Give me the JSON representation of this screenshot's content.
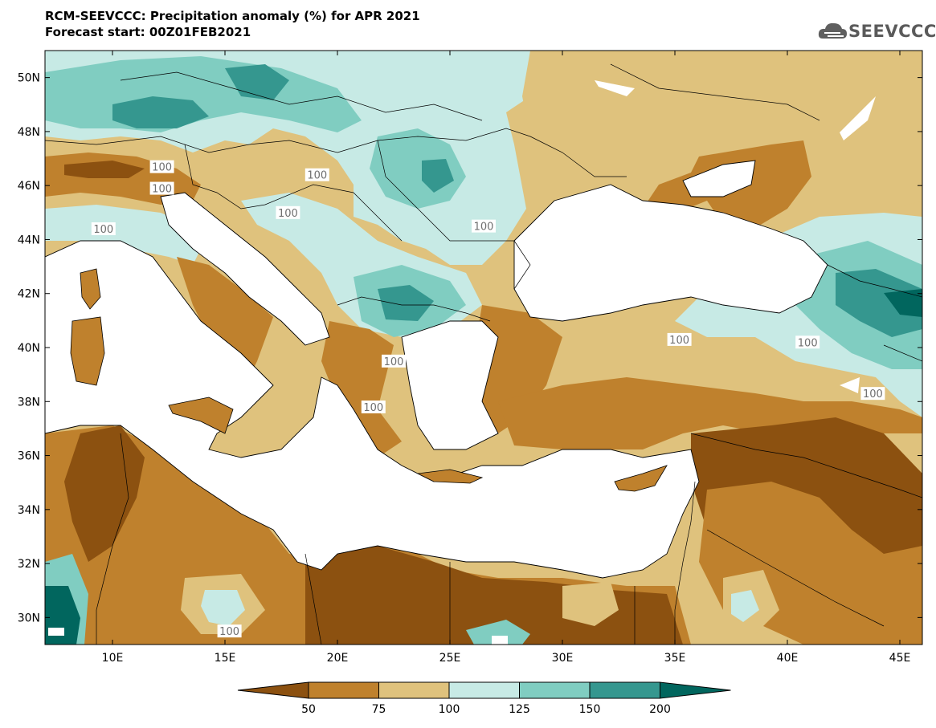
{
  "header": {
    "title": "RCM-SEEVCCC: Precipitation anomaly (%) for APR 2021",
    "subtitle": "Forecast start: 00Z01FEB2021"
  },
  "logo": {
    "text": "SEEVCCC",
    "icon": "cloud-icon"
  },
  "map": {
    "lon_range": [
      7,
      46
    ],
    "lat_range": [
      29,
      51
    ],
    "lon_ticks": [
      "10E",
      "15E",
      "20E",
      "25E",
      "30E",
      "35E",
      "40E",
      "45E"
    ],
    "lat_ticks": [
      "30N",
      "32N",
      "34N",
      "36N",
      "38N",
      "40N",
      "42N",
      "44N",
      "46N",
      "48N",
      "50N"
    ],
    "contour_labels": [
      {
        "text": "100",
        "lon": 12.2,
        "lat": 46.7
      },
      {
        "text": "100",
        "lon": 19.1,
        "lat": 46.4
      },
      {
        "text": "100",
        "lon": 12.2,
        "lat": 45.9
      },
      {
        "text": "100",
        "lon": 17.8,
        "lat": 45.0
      },
      {
        "text": "100",
        "lon": 9.6,
        "lat": 44.4
      },
      {
        "text": "100",
        "lon": 26.5,
        "lat": 44.5
      },
      {
        "text": "100",
        "lon": 40.9,
        "lat": 40.2
      },
      {
        "text": "100",
        "lon": 35.2,
        "lat": 40.3
      },
      {
        "text": "100",
        "lon": 22.5,
        "lat": 39.5
      },
      {
        "text": "100",
        "lon": 21.6,
        "lat": 37.8
      },
      {
        "text": "100",
        "lon": 43.8,
        "lat": 38.3
      },
      {
        "text": "100",
        "lon": 15.2,
        "lat": 29.5
      }
    ],
    "colors": {
      "class_lt50": "#8c5110",
      "class_50_75": "#bf812d",
      "class_75_100": "#dfc27d",
      "class_100_125": "#c7eae5",
      "class_125_150": "#80cdc1",
      "class_150_200": "#35978f",
      "class_gt200": "#01665e",
      "sea": "#ffffff",
      "contour": "#a0a0a0"
    }
  },
  "colorbar": {
    "labels": [
      "50",
      "75",
      "100",
      "125",
      "150",
      "200"
    ],
    "colors": [
      "#8c5110",
      "#bf812d",
      "#dfc27d",
      "#c7eae5",
      "#80cdc1",
      "#35978f",
      "#01665e"
    ]
  }
}
